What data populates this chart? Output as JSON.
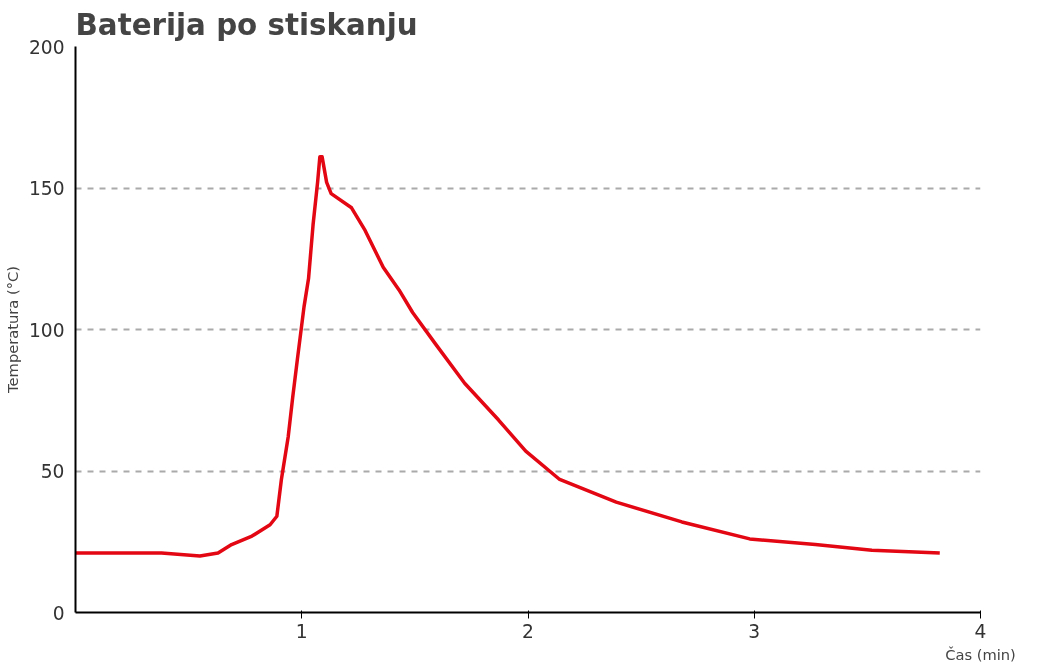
{
  "chart_data": {
    "type": "line",
    "title": "Baterija po stiskanju",
    "xlabel": "Čas (min)",
    "ylabel": "Temperatura (°C)",
    "x": [
      0,
      0.38,
      0.55,
      0.63,
      0.69,
      0.78,
      0.86,
      0.89,
      0.91,
      0.94,
      0.96,
      0.98,
      1.01,
      1.03,
      1.05,
      1.07,
      1.08,
      1.09,
      1.11,
      1.13,
      1.22,
      1.28,
      1.36,
      1.43,
      1.49,
      1.59,
      1.72,
      1.87,
      1.99,
      2.14,
      2.39,
      2.68,
      2.98,
      3.27,
      3.52,
      3.82
    ],
    "series": [
      {
        "color": "#e30613",
        "values": [
          21,
          21,
          20,
          21,
          24,
          27,
          31,
          34,
          47,
          62,
          76,
          89,
          108,
          118,
          137,
          152,
          161,
          161,
          152,
          148,
          143,
          135,
          122,
          114,
          106,
          95,
          81,
          68,
          57,
          47,
          39,
          32,
          26,
          24,
          22,
          21
        ]
      }
    ],
    "xlim": [
      0,
      4
    ],
    "xticks": [
      1,
      2,
      3,
      4
    ],
    "ylim": [
      0,
      200
    ],
    "yticks": [
      0,
      50,
      100,
      150,
      200
    ],
    "grid": "y",
    "marker": "none",
    "line_style": "solid"
  }
}
